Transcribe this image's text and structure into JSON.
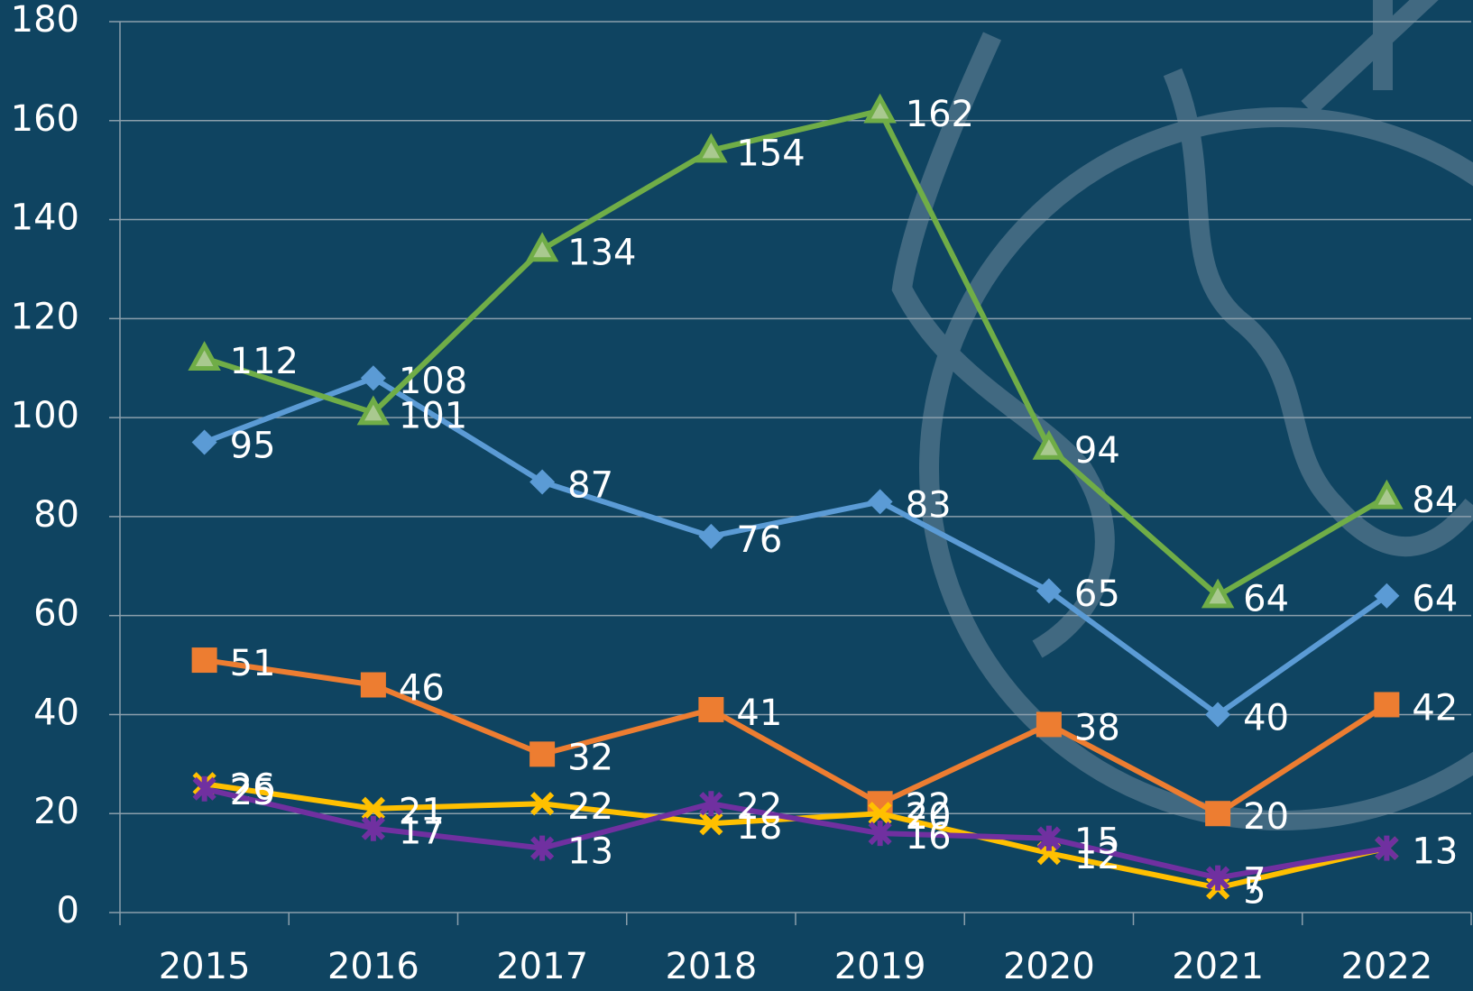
{
  "chart_data": {
    "type": "line",
    "categories": [
      "2015",
      "2016",
      "2017",
      "2018",
      "2019",
      "2020",
      "2021",
      "2022"
    ],
    "series": [
      {
        "color": "#5b9bd5",
        "marker": "diamond",
        "values": [
          95,
          108,
          87,
          76,
          83,
          65,
          40,
          64
        ]
      },
      {
        "color": "#ed7d31",
        "marker": "square",
        "values": [
          51,
          46,
          32,
          41,
          22,
          38,
          20,
          42
        ]
      },
      {
        "color": "#70ad47",
        "marker": "triangle",
        "values": [
          112,
          101,
          134,
          154,
          162,
          94,
          64,
          84
        ]
      },
      {
        "color": "#ffc000",
        "marker": "x",
        "values": [
          26,
          21,
          22,
          18,
          20,
          12,
          5,
          13
        ]
      },
      {
        "color": "#7030a0",
        "marker": "star",
        "values": [
          25,
          17,
          13,
          22,
          16,
          15,
          7,
          13
        ]
      }
    ],
    "ylim": [
      0,
      180
    ],
    "yticks": [
      0,
      20,
      40,
      60,
      80,
      100,
      120,
      140,
      160,
      180
    ],
    "grid": true,
    "data_labels": true
  }
}
